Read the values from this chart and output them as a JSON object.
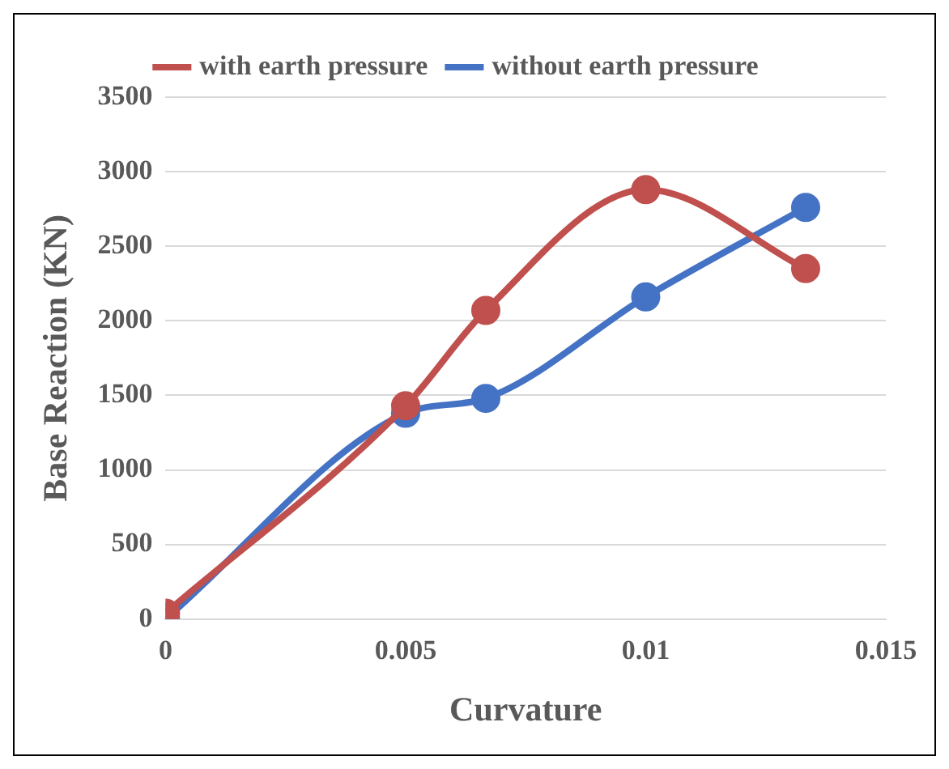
{
  "chart_data": {
    "type": "line",
    "xlabel": "Curvature",
    "ylabel": "Base Reaction (KN)",
    "x": [
      0,
      0.005,
      0.00667,
      0.01,
      0.01333
    ],
    "series": [
      {
        "name": "without earth pressure",
        "color": "#4472c4",
        "values": [
          0,
          1380,
          1480,
          2160,
          2760
        ]
      },
      {
        "name": "with earth pressure",
        "color": "#c0504d",
        "values": [
          40,
          1430,
          2070,
          2880,
          2350
        ]
      }
    ],
    "xlim": [
      0,
      0.015
    ],
    "xticks": [
      0,
      0.005,
      0.01,
      0.015
    ],
    "ylim": [
      0,
      3500
    ],
    "yticks": [
      0,
      500,
      1000,
      1500,
      2000,
      2500,
      3000,
      3500
    ],
    "grid": "y",
    "legend": "top",
    "marker": "circle",
    "line_style": "solid"
  }
}
